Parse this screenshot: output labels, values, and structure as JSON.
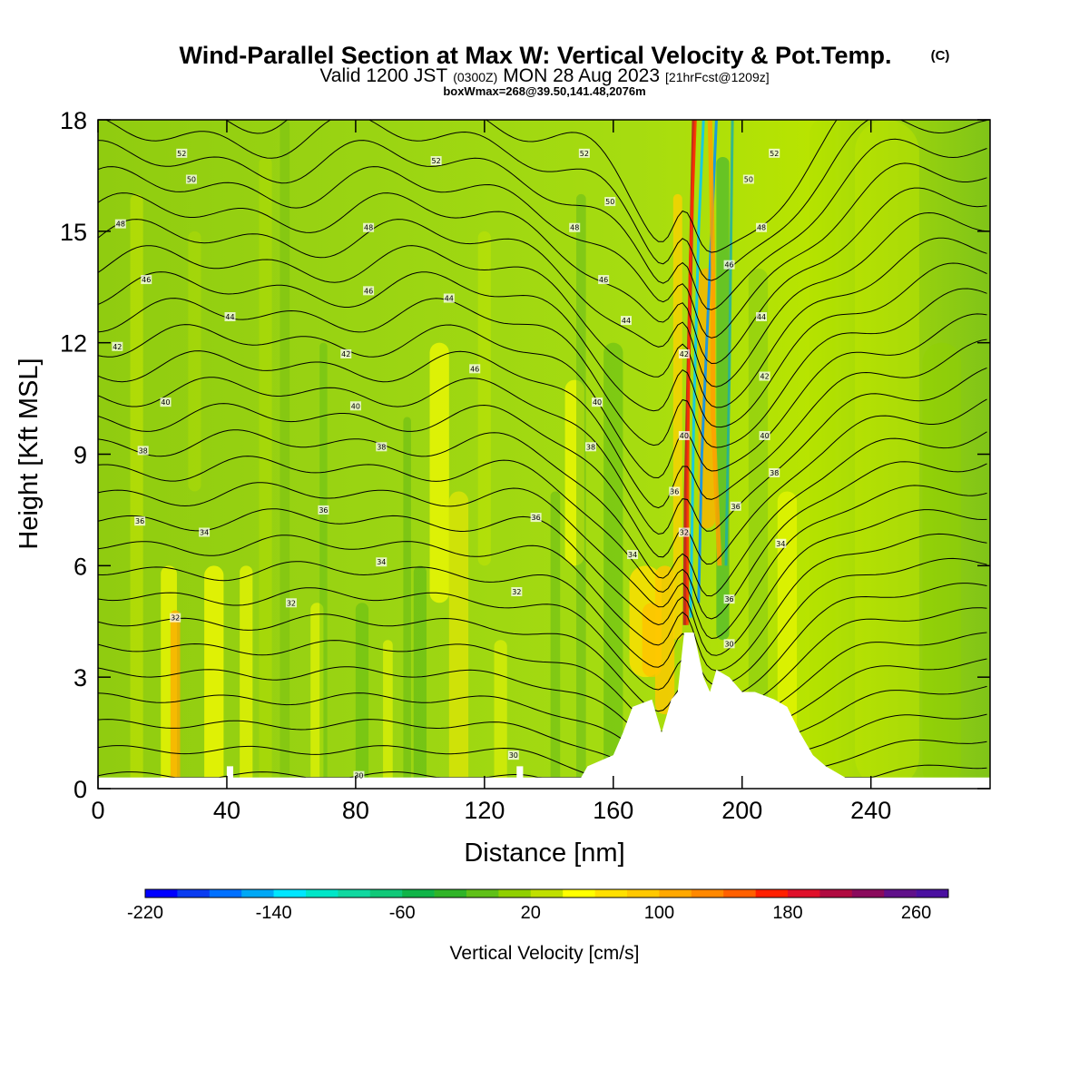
{
  "header": {
    "title": "Wind-Parallel Section at Max W: Vertical Velocity & Pot.Temp.",
    "copyright": "(C)",
    "valid_prefix": "Valid 1200 JST",
    "valid_utc": "(0300Z)",
    "valid_date": "MON 28 Aug 2023",
    "forecast": "[21hrFcst@1209z]",
    "boxwmax": "boxWmax=268@39.50,141.48,2076m"
  },
  "chart_data": {
    "type": "heatmap",
    "title": "Wind-Parallel Section at Max W: Vertical Velocity & Pot.Temp.",
    "xlabel": "Distance [nm]",
    "ylabel": "Height [Kft MSL]",
    "xlim": [
      0,
      277
    ],
    "ylim": [
      0,
      18
    ],
    "x_ticks": [
      "0",
      "40",
      "80",
      "120",
      "160",
      "200",
      "240"
    ],
    "y_ticks": [
      "0",
      "3",
      "6",
      "9",
      "12",
      "15",
      "18"
    ],
    "x_tick_values": [
      0,
      40,
      80,
      120,
      160,
      200,
      240
    ],
    "y_tick_values": [
      0,
      3,
      6,
      9,
      12,
      15,
      18
    ],
    "colorbar": {
      "label": "Vertical Velocity [cm/s]",
      "min": -220,
      "max": 280,
      "step": 20,
      "tick_labels": [
        "-220",
        "-140",
        "-60",
        "20",
        "100",
        "180",
        "260"
      ],
      "tick_values": [
        -220,
        -140,
        -60,
        20,
        100,
        180,
        260
      ],
      "colors": [
        "#0000ff",
        "#0a3cf0",
        "#0070ff",
        "#00a8f5",
        "#00e6ff",
        "#00e6c8",
        "#10d8a0",
        "#10c878",
        "#10b448",
        "#30b428",
        "#60c018",
        "#90d000",
        "#c0e000",
        "#ffff00",
        "#ffe000",
        "#ffc800",
        "#ffa800",
        "#ff8800",
        "#ff6000",
        "#ff2000",
        "#e0102a",
        "#b00a40",
        "#8a0a5c",
        "#60108a",
        "#4a10a0"
      ]
    },
    "wmax": {
      "value": 268,
      "lat": 39.5,
      "lon": 141.48,
      "height_m": 2076
    },
    "terrain": [
      [
        0,
        0.3
      ],
      [
        40,
        0.3
      ],
      [
        40,
        0.6
      ],
      [
        42,
        0.6
      ],
      [
        42,
        0.3
      ],
      [
        130,
        0.3
      ],
      [
        130,
        0.6
      ],
      [
        132,
        0.6
      ],
      [
        132,
        0.3
      ],
      [
        150,
        0.3
      ],
      [
        152,
        0.6
      ],
      [
        160,
        0.9
      ],
      [
        163,
        1.5
      ],
      [
        166,
        2.2
      ],
      [
        172,
        2.4
      ],
      [
        175,
        1.5
      ],
      [
        178,
        2.4
      ],
      [
        180,
        2.6
      ],
      [
        182,
        4.2
      ],
      [
        185,
        4.2
      ],
      [
        188,
        3.0
      ],
      [
        190,
        2.6
      ],
      [
        192,
        3.2
      ],
      [
        196,
        3.0
      ],
      [
        200,
        2.6
      ],
      [
        204,
        2.6
      ],
      [
        210,
        2.4
      ],
      [
        214,
        2.2
      ],
      [
        218,
        1.5
      ],
      [
        222,
        0.9
      ],
      [
        226,
        0.6
      ],
      [
        232,
        0.3
      ],
      [
        277,
        0.3
      ]
    ],
    "isentrope_labels": [
      {
        "x": 26,
        "y": 17.1,
        "text": "52"
      },
      {
        "x": 29,
        "y": 16.4,
        "text": "50"
      },
      {
        "x": 7,
        "y": 15.2,
        "text": "48"
      },
      {
        "x": 15,
        "y": 13.7,
        "text": "46"
      },
      {
        "x": 41,
        "y": 12.7,
        "text": "44"
      },
      {
        "x": 6,
        "y": 11.9,
        "text": "42"
      },
      {
        "x": 21,
        "y": 10.4,
        "text": "40"
      },
      {
        "x": 14,
        "y": 9.1,
        "text": "38"
      },
      {
        "x": 13,
        "y": 7.2,
        "text": "36"
      },
      {
        "x": 33,
        "y": 6.9,
        "text": "34"
      },
      {
        "x": 24,
        "y": 4.6,
        "text": "32"
      },
      {
        "x": 60,
        "y": 5.0,
        "text": "32"
      },
      {
        "x": 70,
        "y": 7.5,
        "text": "36"
      },
      {
        "x": 77,
        "y": 11.7,
        "text": "42"
      },
      {
        "x": 80,
        "y": 10.3,
        "text": "40"
      },
      {
        "x": 84,
        "y": 13.4,
        "text": "46"
      },
      {
        "x": 84,
        "y": 15.1,
        "text": "48"
      },
      {
        "x": 88,
        "y": 9.2,
        "text": "38"
      },
      {
        "x": 88,
        "y": 6.1,
        "text": "34"
      },
      {
        "x": 105,
        "y": 16.9,
        "text": "52"
      },
      {
        "x": 109,
        "y": 13.2,
        "text": "44"
      },
      {
        "x": 117,
        "y": 11.3,
        "text": "46"
      },
      {
        "x": 130,
        "y": 5.3,
        "text": "32"
      },
      {
        "x": 136,
        "y": 7.3,
        "text": "36"
      },
      {
        "x": 148,
        "y": 15.1,
        "text": "48"
      },
      {
        "x": 151,
        "y": 17.1,
        "text": "52"
      },
      {
        "x": 153,
        "y": 9.2,
        "text": "38"
      },
      {
        "x": 155,
        "y": 10.4,
        "text": "40"
      },
      {
        "x": 157,
        "y": 13.7,
        "text": "46"
      },
      {
        "x": 159,
        "y": 15.8,
        "text": "50"
      },
      {
        "x": 164,
        "y": 12.6,
        "text": "44"
      },
      {
        "x": 166,
        "y": 6.3,
        "text": "34"
      },
      {
        "x": 179,
        "y": 8.0,
        "text": "36"
      },
      {
        "x": 182,
        "y": 6.9,
        "text": "32"
      },
      {
        "x": 182,
        "y": 9.5,
        "text": "40"
      },
      {
        "x": 182,
        "y": 11.7,
        "text": "42"
      },
      {
        "x": 196,
        "y": 5.1,
        "text": "36"
      },
      {
        "x": 196,
        "y": 14.1,
        "text": "46"
      },
      {
        "x": 196,
        "y": 3.9,
        "text": "30"
      },
      {
        "x": 198,
        "y": 7.6,
        "text": "36"
      },
      {
        "x": 202,
        "y": 16.4,
        "text": "50"
      },
      {
        "x": 206,
        "y": 15.1,
        "text": "48"
      },
      {
        "x": 206,
        "y": 12.7,
        "text": "44"
      },
      {
        "x": 207,
        "y": 11.1,
        "text": "42"
      },
      {
        "x": 207,
        "y": 9.5,
        "text": "40"
      },
      {
        "x": 210,
        "y": 8.5,
        "text": "38"
      },
      {
        "x": 210,
        "y": 17.1,
        "text": "52"
      },
      {
        "x": 212,
        "y": 6.6,
        "text": "34"
      },
      {
        "x": 129,
        "y": 0.9,
        "text": "30"
      },
      {
        "x": 81,
        "y": 0.35,
        "text": "30"
      }
    ]
  }
}
